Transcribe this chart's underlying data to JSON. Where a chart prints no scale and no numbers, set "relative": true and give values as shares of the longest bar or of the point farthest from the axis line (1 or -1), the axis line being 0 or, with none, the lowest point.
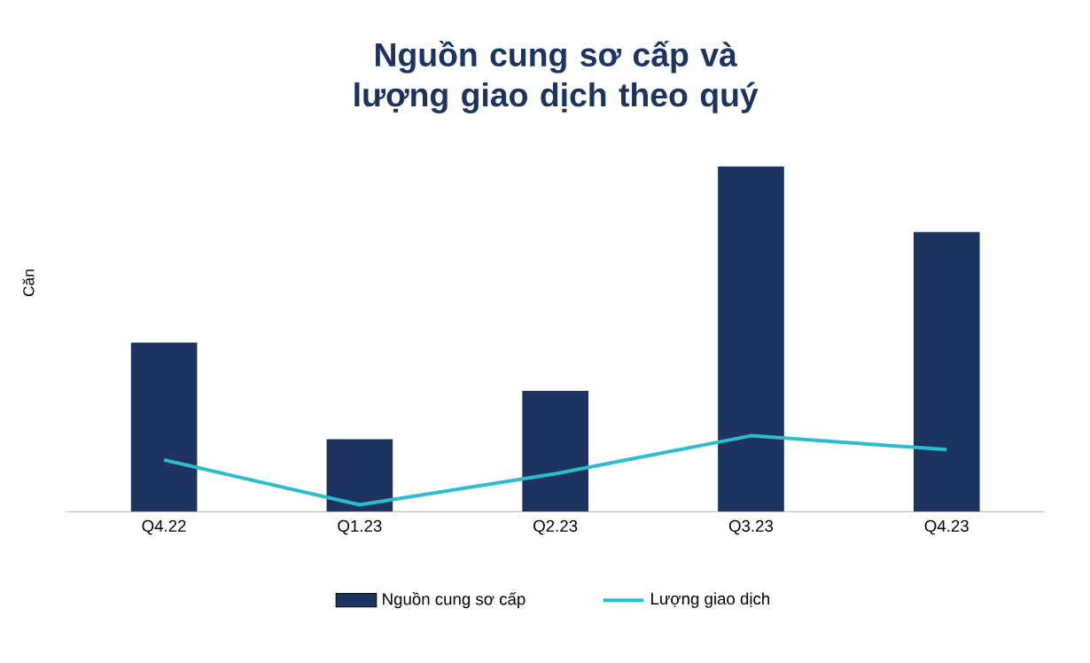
{
  "chart_data": {
    "type": "bar",
    "title": "Nguồn cung sơ cấp và lượng giao dịch theo quý",
    "ylabel": "Căn",
    "relative": true,
    "legend": "bottom",
    "categories": [
      "Q4.22",
      "Q1.23",
      "Q2.23",
      "Q3.23",
      "Q4.23"
    ],
    "series": [
      {
        "name": "Nguồn cung sơ cấp",
        "color": "#1d3461",
        "values": [
          0.49,
          0.21,
          0.35,
          1,
          0.81
        ]
      },
      {
        "name": "Lượng giao dịch",
        "type": "line",
        "color": "#2bbdce",
        "values": [
          0.15,
          0.02,
          0.11,
          0.22,
          0.18
        ]
      }
    ]
  }
}
